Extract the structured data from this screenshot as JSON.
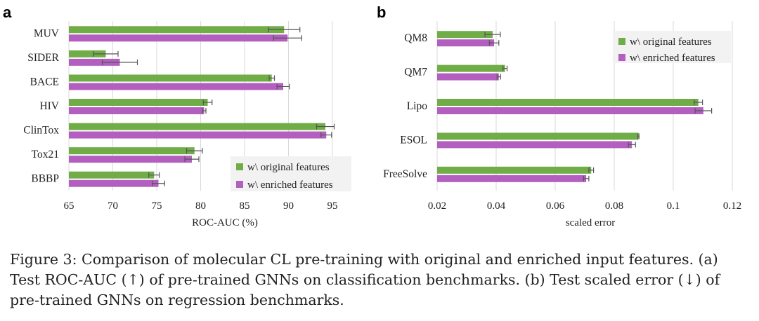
{
  "figure": {
    "colors": {
      "original": "#70ad47",
      "enriched": "#b35fc0",
      "grid": "#d9d9d9",
      "error": "#555555"
    },
    "caption": "Figure 3: Comparison of molecular CL pre-training with original and enriched input features. (a) Test ROC-AUC (↑) of pre-trained GNNs on classification benchmarks. (b) Test scaled error (↓) of pre-trained GNNs on regression benchmarks."
  },
  "chart_data": [
    {
      "panel": "a",
      "type": "bar",
      "orientation": "horizontal",
      "xlabel": "ROC-AUC (%)",
      "ylabel": "",
      "xlim": [
        65,
        97
      ],
      "xticks": [
        65,
        70,
        75,
        80,
        85,
        90,
        95
      ],
      "xtick_labels": [
        "65",
        "70",
        "75",
        "80",
        "85",
        "90",
        "95"
      ],
      "grid": true,
      "legend_position": "bottom-right",
      "categories": [
        "MUV",
        "SIDER",
        "BACE",
        "HIV",
        "ClinTox",
        "Tox21",
        "BBBP"
      ],
      "series": [
        {
          "name": "w\\ original features",
          "key": "original",
          "values": [
            89.5,
            69.2,
            88.1,
            80.8,
            94.2,
            79.3,
            74.7
          ],
          "errors": [
            1.8,
            1.4,
            0.3,
            0.5,
            1.0,
            0.9,
            0.6
          ]
        },
        {
          "name": "w\\ enriched features",
          "key": "enriched",
          "values": [
            89.9,
            70.8,
            89.4,
            80.4,
            94.3,
            79.0,
            75.2
          ],
          "errors": [
            1.6,
            2.0,
            0.7,
            0.2,
            0.6,
            0.8,
            0.7
          ]
        }
      ]
    },
    {
      "panel": "b",
      "type": "bar",
      "orientation": "horizontal",
      "xlabel": "scaled error",
      "ylabel": "",
      "xlim": [
        0.02,
        0.12
      ],
      "xticks": [
        0.02,
        0.04,
        0.06,
        0.08,
        0.1,
        0.12
      ],
      "xtick_labels": [
        "0.02",
        "0.04",
        "0.06",
        "0.08",
        "0.1",
        "0.12"
      ],
      "grid": true,
      "legend_position": "top-right",
      "categories": [
        "QM8",
        "QM7",
        "Lipo",
        "ESOL",
        "FreeSolve"
      ],
      "series": [
        {
          "name": "w\\ original features",
          "key": "original",
          "values": [
            0.0388,
            0.043,
            0.1085,
            0.0882,
            0.0722
          ],
          "errors": [
            0.0026,
            0.0007,
            0.0014,
            0.0002,
            0.0008
          ]
        },
        {
          "name": "w\\ enriched features",
          "key": "enriched",
          "values": [
            0.0393,
            0.0409,
            0.1102,
            0.086,
            0.0705
          ],
          "errors": [
            0.0016,
            0.0006,
            0.0028,
            0.0012,
            0.0009
          ]
        }
      ]
    }
  ]
}
